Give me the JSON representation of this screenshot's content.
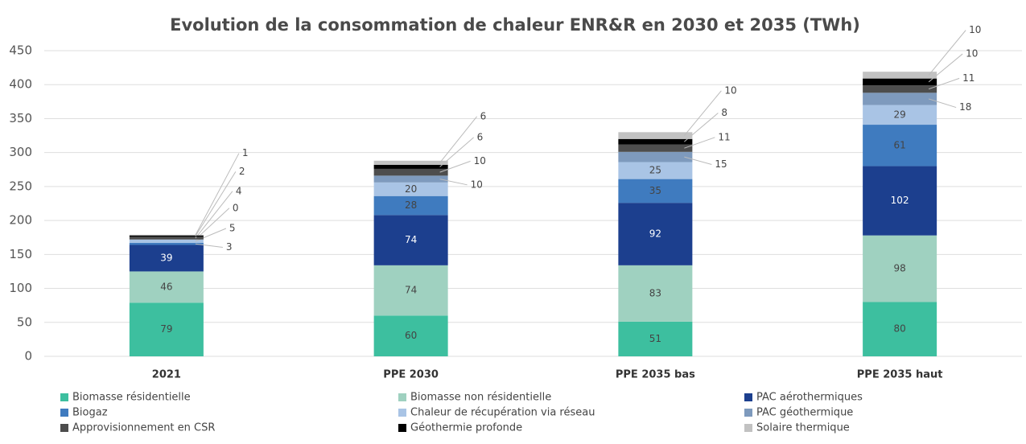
{
  "chart_data": {
    "type": "stacked_bar",
    "title": "Evolution de la consommation de chaleur ENR&R en 2030 et 2035 (TWh)",
    "categories": [
      "2021",
      "PPE 2030",
      "PPE 2035 bas",
      "PPE 2035 haut"
    ],
    "series": [
      {
        "name": "Biomasse résidentielle",
        "color": "#3dbf9f",
        "values": [
          79,
          60,
          51,
          80
        ]
      },
      {
        "name": "Biomasse non résidentielle",
        "color": "#9fd1c0",
        "values": [
          46,
          74,
          83,
          98
        ]
      },
      {
        "name": "PAC aérothermiques",
        "color": "#1c3f8e",
        "values": [
          39,
          74,
          92,
          102
        ]
      },
      {
        "name": "Biogaz",
        "color": "#3f7bbf",
        "values": [
          3,
          28,
          35,
          61
        ]
      },
      {
        "name": "Chaleur de récupération via réseau",
        "color": "#a9c4e5",
        "values": [
          5,
          20,
          25,
          29
        ]
      },
      {
        "name": "PAC géothermique",
        "color": "#7e9abd",
        "values": [
          0,
          10,
          15,
          18
        ]
      },
      {
        "name": "Approvisionnement en CSR",
        "color": "#4d4d4d",
        "values": [
          4,
          10,
          11,
          11
        ]
      },
      {
        "name": "Géothermie profonde",
        "color": "#000000",
        "values": [
          2,
          6,
          8,
          10
        ]
      },
      {
        "name": "Solaire thermique",
        "color": "#c2c2c2",
        "values": [
          1,
          6,
          10,
          10
        ]
      }
    ],
    "ylim": [
      0,
      450
    ],
    "yticks": [
      0,
      50,
      100,
      150,
      200,
      250,
      300,
      350,
      400,
      450
    ],
    "grid": true,
    "legend": "bottom"
  }
}
